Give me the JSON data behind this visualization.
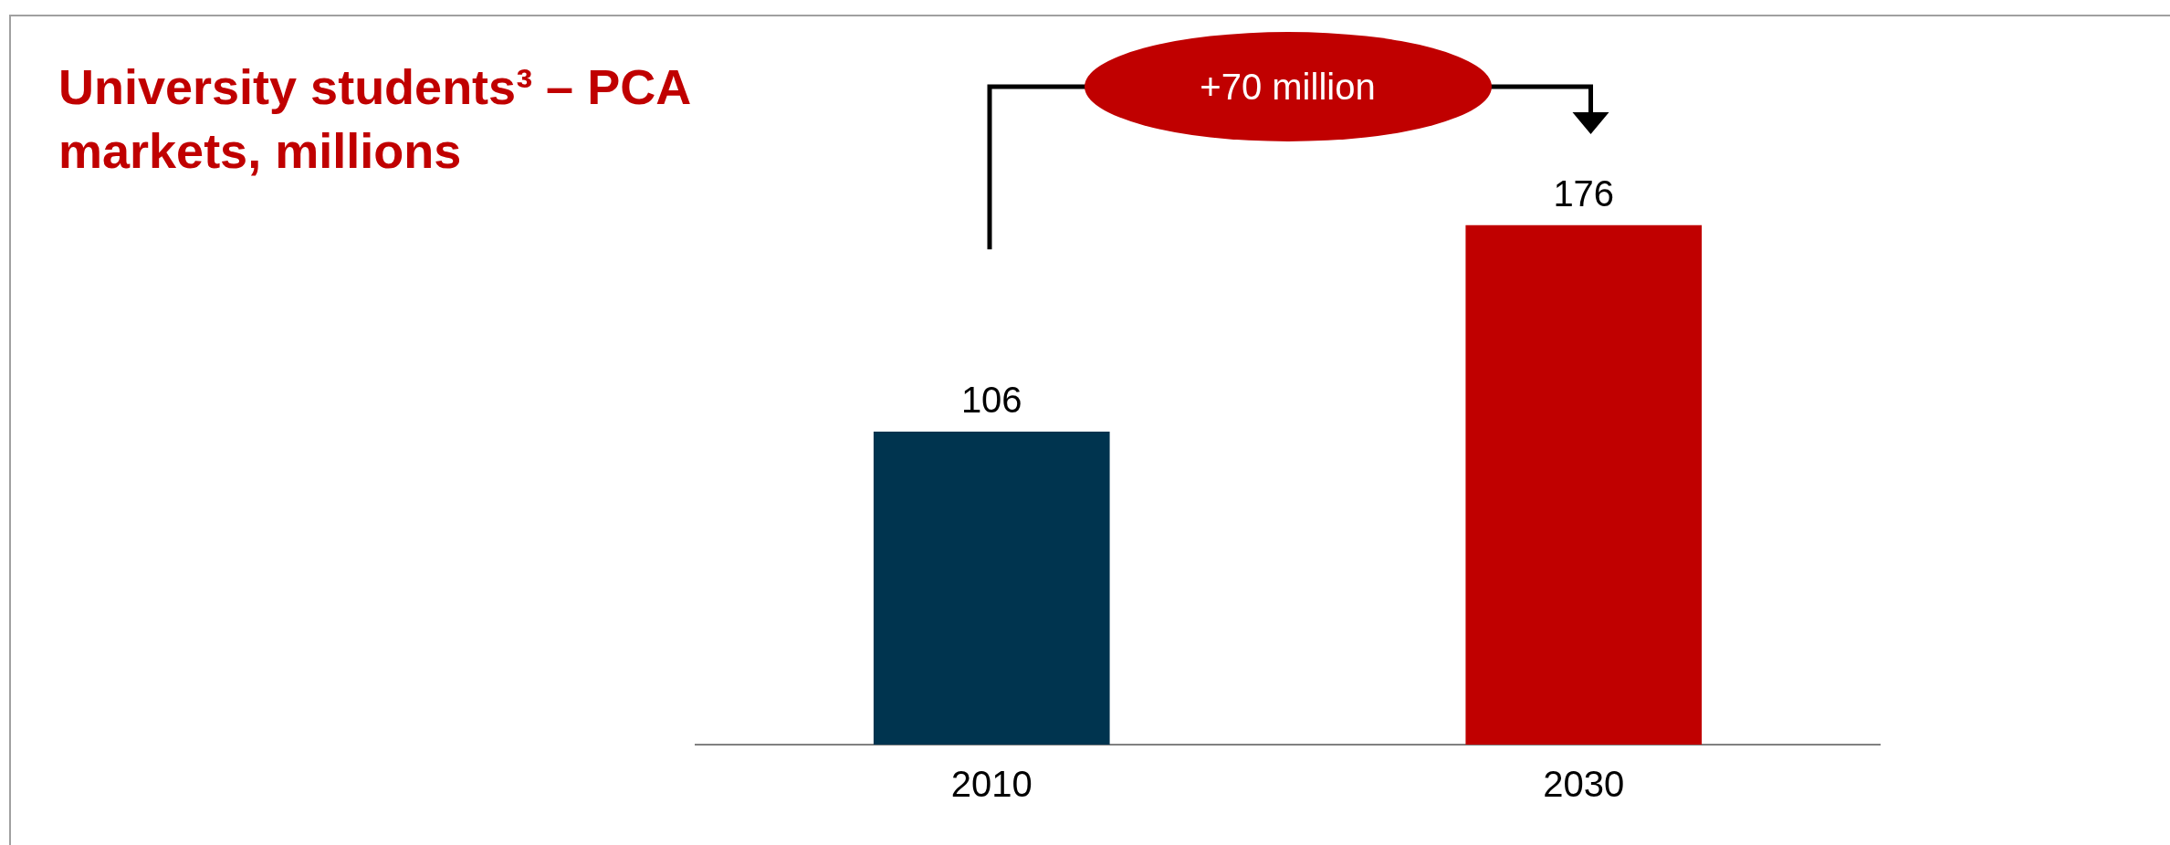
{
  "chart_data": {
    "type": "bar",
    "title": "University students³ – PCA markets, millions",
    "categories": [
      "2010",
      "2030"
    ],
    "values": [
      106,
      176
    ],
    "colors": [
      "#00344f",
      "#c00000"
    ],
    "data_labels": true,
    "legend": false,
    "annotations": [
      "+70 million"
    ]
  }
}
